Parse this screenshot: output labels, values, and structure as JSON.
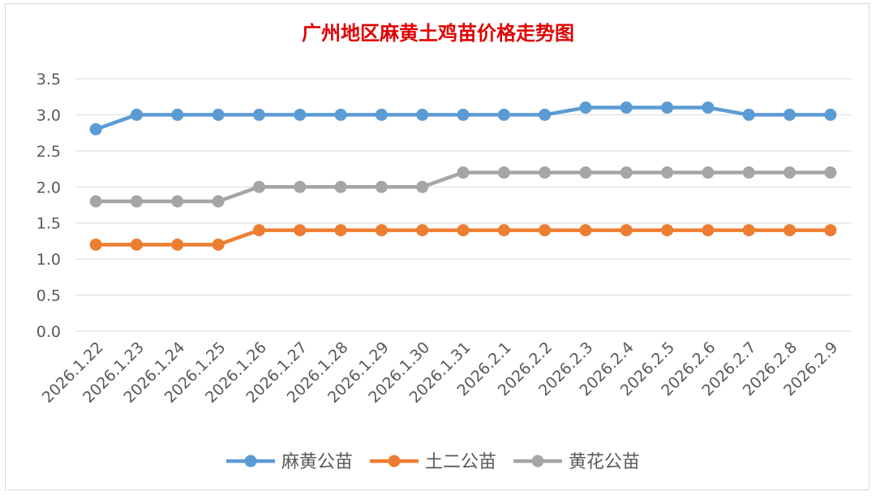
{
  "chart_data": {
    "type": "line",
    "title": "广州地区麻黄土鸡苗价格走势图",
    "categories": [
      "2026.1.22",
      "2026.1.23",
      "2026.1.24",
      "2026.1.25",
      "2026.1.26",
      "2026.1.27",
      "2026.1.28",
      "2026.1.29",
      "2026.1.30",
      "2026.1.31",
      "2026.2.1",
      "2026.2.2",
      "2026.2.3",
      "2026.2.4",
      "2026.2.5",
      "2026.2.6",
      "2026.2.7",
      "2026.2.8",
      "2026.2.9"
    ],
    "series": [
      {
        "name": "麻黄公苗",
        "color": "#5b9bd5",
        "values": [
          2.8,
          3.0,
          3.0,
          3.0,
          3.0,
          3.0,
          3.0,
          3.0,
          3.0,
          3.0,
          3.0,
          3.0,
          3.1,
          3.1,
          3.1,
          3.1,
          3.0,
          3.0,
          3.0
        ]
      },
      {
        "name": "土二公苗",
        "color": "#ed7d31",
        "values": [
          1.2,
          1.2,
          1.2,
          1.2,
          1.4,
          1.4,
          1.4,
          1.4,
          1.4,
          1.4,
          1.4,
          1.4,
          1.4,
          1.4,
          1.4,
          1.4,
          1.4,
          1.4,
          1.4
        ]
      },
      {
        "name": "黄花公苗",
        "color": "#a5a5a5",
        "values": [
          1.8,
          1.8,
          1.8,
          1.8,
          2.0,
          2.0,
          2.0,
          2.0,
          2.0,
          2.2,
          2.2,
          2.2,
          2.2,
          2.2,
          2.2,
          2.2,
          2.2,
          2.2,
          2.2
        ]
      }
    ],
    "yticks": [
      "0.0",
      "0.5",
      "1.0",
      "1.5",
      "2.0",
      "2.5",
      "3.0",
      "3.5"
    ],
    "ylim": [
      0,
      3.5
    ],
    "grid": true,
    "legend_position": "bottom"
  }
}
